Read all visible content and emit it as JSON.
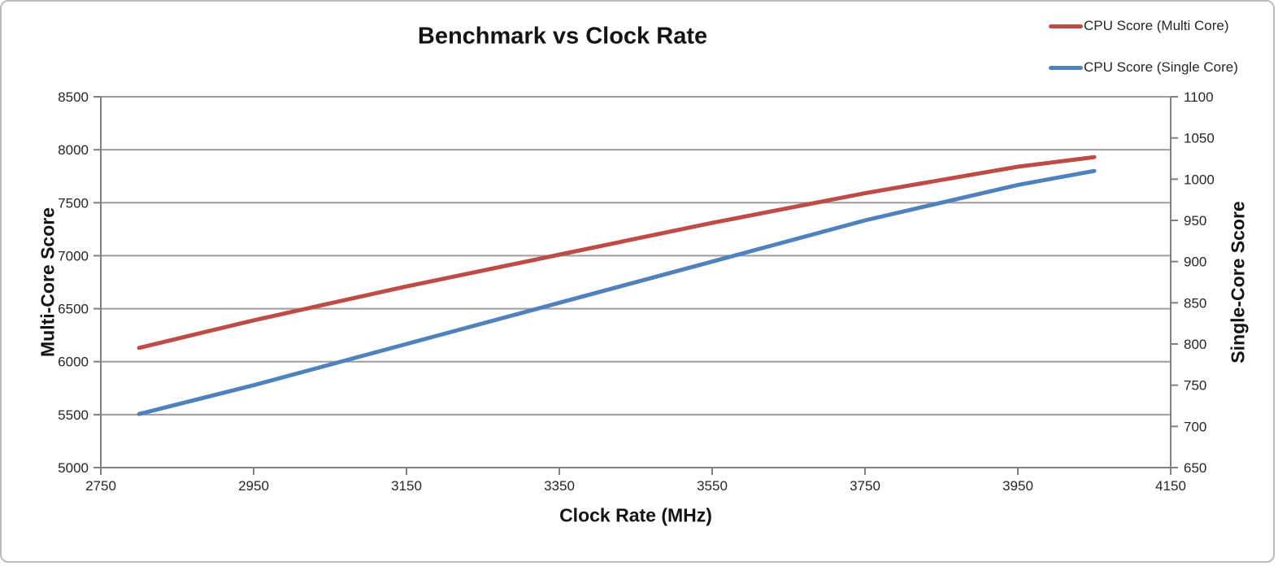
{
  "chart_data": {
    "type": "line",
    "title": "Benchmark vs Clock Rate",
    "xlabel": "Clock Rate (MHz)",
    "ylabel_left": "Multi-Core Score",
    "ylabel_right": "Single-Core Score",
    "legend_position": "top-right",
    "grid": "horizontal-major-gridlines-on",
    "xlim": [
      2750,
      4150
    ],
    "ylim_left": [
      5000,
      8500
    ],
    "ylim_right": [
      650,
      1100
    ],
    "xticks": [
      2750,
      2950,
      3150,
      3350,
      3550,
      3750,
      3950,
      4150
    ],
    "yticks_left": [
      5000,
      5500,
      6000,
      6500,
      7000,
      7500,
      8000,
      8500
    ],
    "yticks_right": [
      650,
      700,
      750,
      800,
      850,
      900,
      950,
      1000,
      1050,
      1100
    ],
    "x": [
      2800,
      2950,
      3150,
      3350,
      3550,
      3750,
      3950,
      4050
    ],
    "series": [
      {
        "name": "CPU Score (Multi Core)",
        "axis": "left",
        "color": "#bf4b47",
        "values": [
          6130,
          6390,
          6710,
          7010,
          7310,
          7590,
          7840,
          7930
        ]
      },
      {
        "name": "CPU Score (Single Core)",
        "axis": "right",
        "color": "#4f81bd",
        "values": [
          715,
          750,
          800,
          850,
          900,
          950,
          993,
          1010
        ]
      }
    ],
    "colors": {
      "gridline": "#9d9d9d",
      "axis_line": "#7f7f7f",
      "text": "#262626"
    }
  }
}
